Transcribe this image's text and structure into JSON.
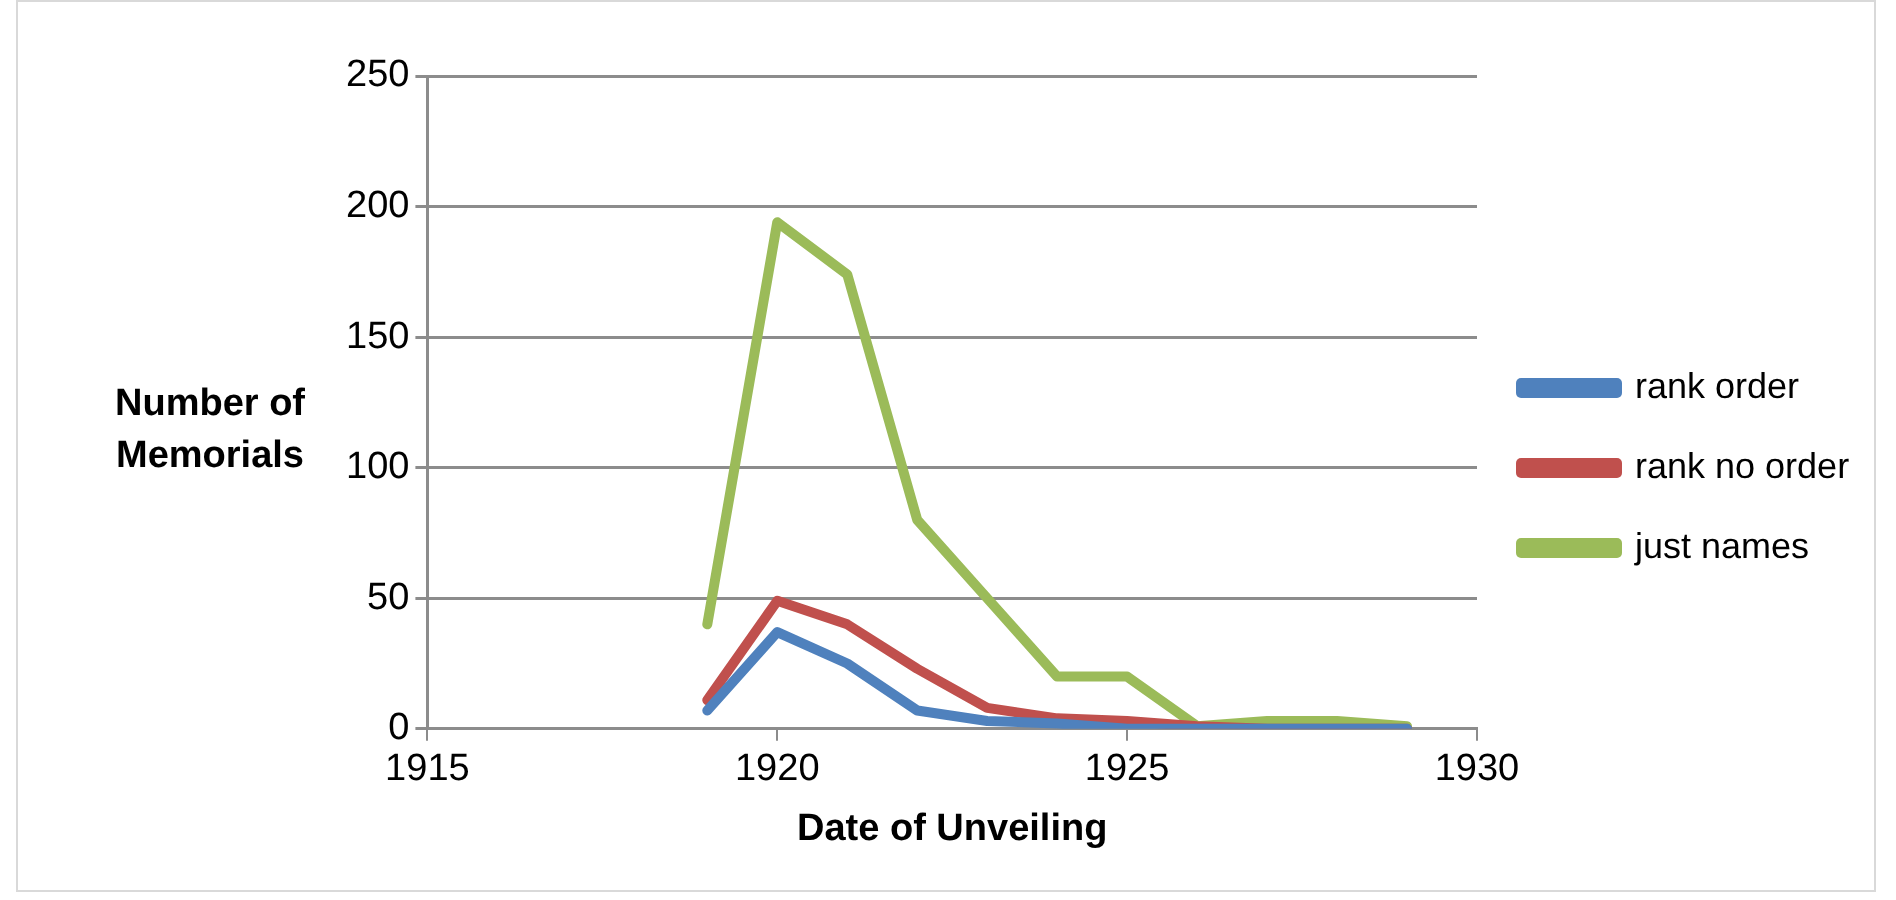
{
  "chart_data": {
    "type": "line",
    "xlabel": "Date of Unveiling",
    "ylabel": "Number of Memorials",
    "x": [
      1919,
      1920,
      1921,
      1922,
      1923,
      1924,
      1925,
      1926,
      1927,
      1928,
      1929
    ],
    "series": [
      {
        "name": "rank order",
        "color": "#4f81bd",
        "values": [
          7,
          37,
          25,
          7,
          3,
          2,
          0,
          0,
          0,
          0,
          0
        ]
      },
      {
        "name": "rank no order",
        "color": "#c0504d",
        "values": [
          11,
          49,
          40,
          23,
          8,
          4,
          3,
          1,
          0,
          0,
          0
        ]
      },
      {
        "name": "just names",
        "color": "#9bbb59",
        "values": [
          40,
          194,
          174,
          80,
          50,
          20,
          20,
          1,
          3,
          3,
          1
        ]
      }
    ],
    "xlim": [
      1915,
      1930
    ],
    "xticks": [
      1915,
      1920,
      1925,
      1930
    ],
    "ylim": [
      0,
      250
    ],
    "yticks": [
      0,
      50,
      100,
      150,
      200,
      250
    ],
    "grid": "y",
    "legend": "right",
    "marker": "none",
    "line_style": "solid"
  }
}
